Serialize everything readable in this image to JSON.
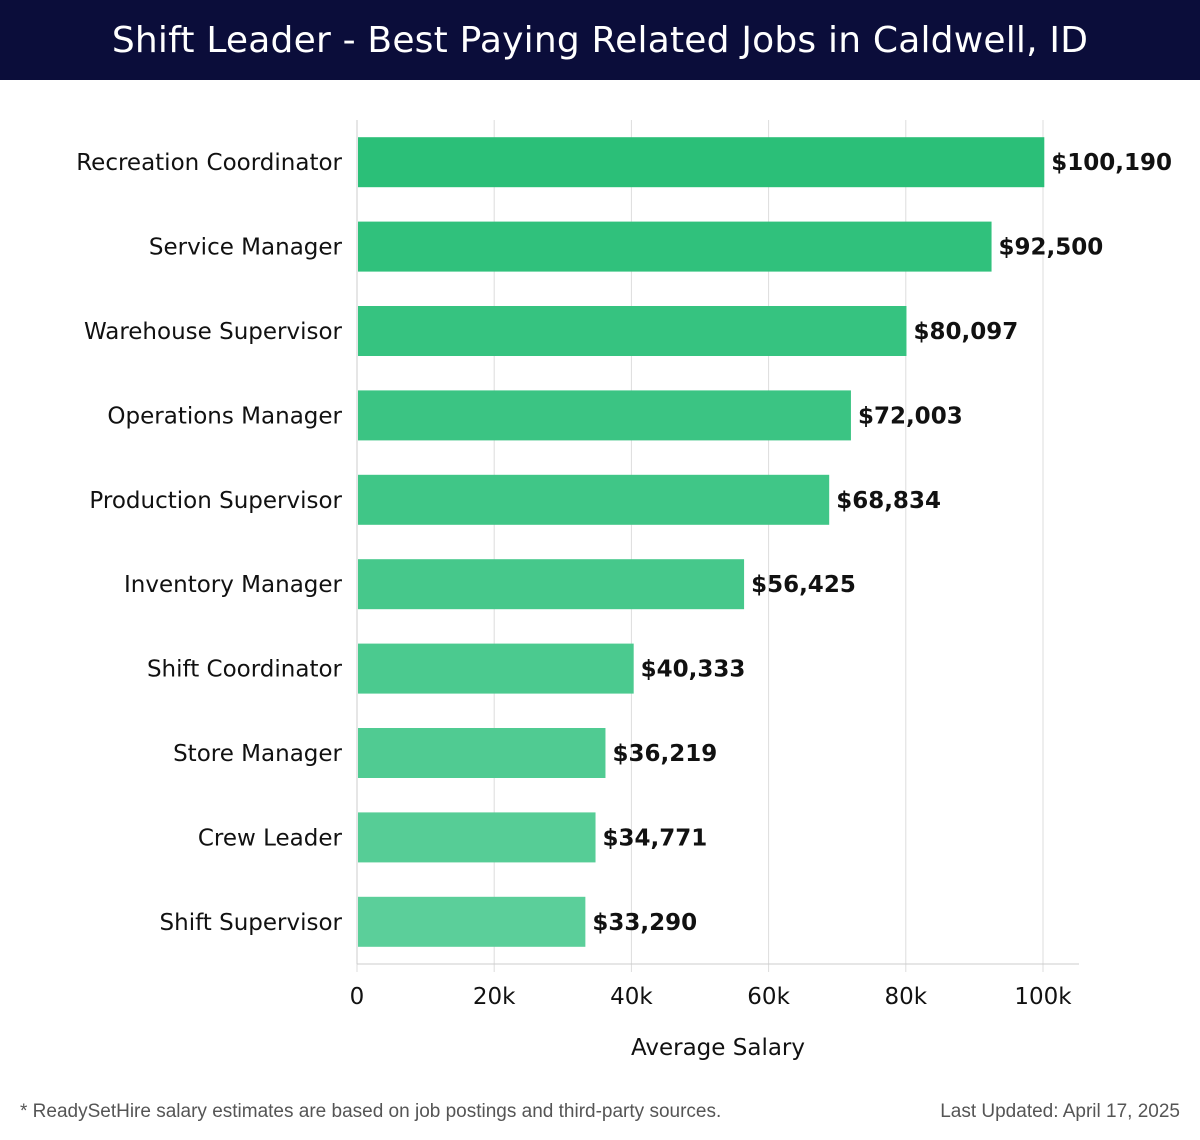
{
  "header": {
    "title": "Shift Leader - Best Paying Related Jobs in Caldwell, ID"
  },
  "footer": {
    "note": "* ReadySetHire salary estimates are based on job postings and third-party sources.",
    "updated": "Last Updated: April 17, 2025"
  },
  "colors": {
    "header_bg": "#0b0d3a",
    "bar_top": "#2bbf78",
    "bar_bottom": "#5bcf9a"
  },
  "chart_data": {
    "type": "bar",
    "orientation": "horizontal",
    "title": "Shift Leader - Best Paying Related Jobs in Caldwell, ID",
    "xlabel": "Average Salary",
    "ylabel": "",
    "xlim": [
      0,
      105000
    ],
    "xticks": [
      0,
      20000,
      40000,
      60000,
      80000,
      100000
    ],
    "xtick_labels": [
      "0",
      "20k",
      "40k",
      "60k",
      "80k",
      "100k"
    ],
    "grid": true,
    "categories": [
      "Recreation Coordinator",
      "Service Manager",
      "Warehouse Supervisor",
      "Operations Manager",
      "Production Supervisor",
      "Inventory Manager",
      "Shift Coordinator",
      "Store Manager",
      "Crew Leader",
      "Shift Supervisor"
    ],
    "values": [
      100190,
      92500,
      80097,
      72003,
      68834,
      56425,
      40333,
      36219,
      34771,
      33290
    ],
    "value_labels": [
      "$100,190",
      "$92,500",
      "$80,097",
      "$72,003",
      "$68,834",
      "$56,425",
      "$40,333",
      "$36,219",
      "$34,771",
      "$33,290"
    ]
  }
}
